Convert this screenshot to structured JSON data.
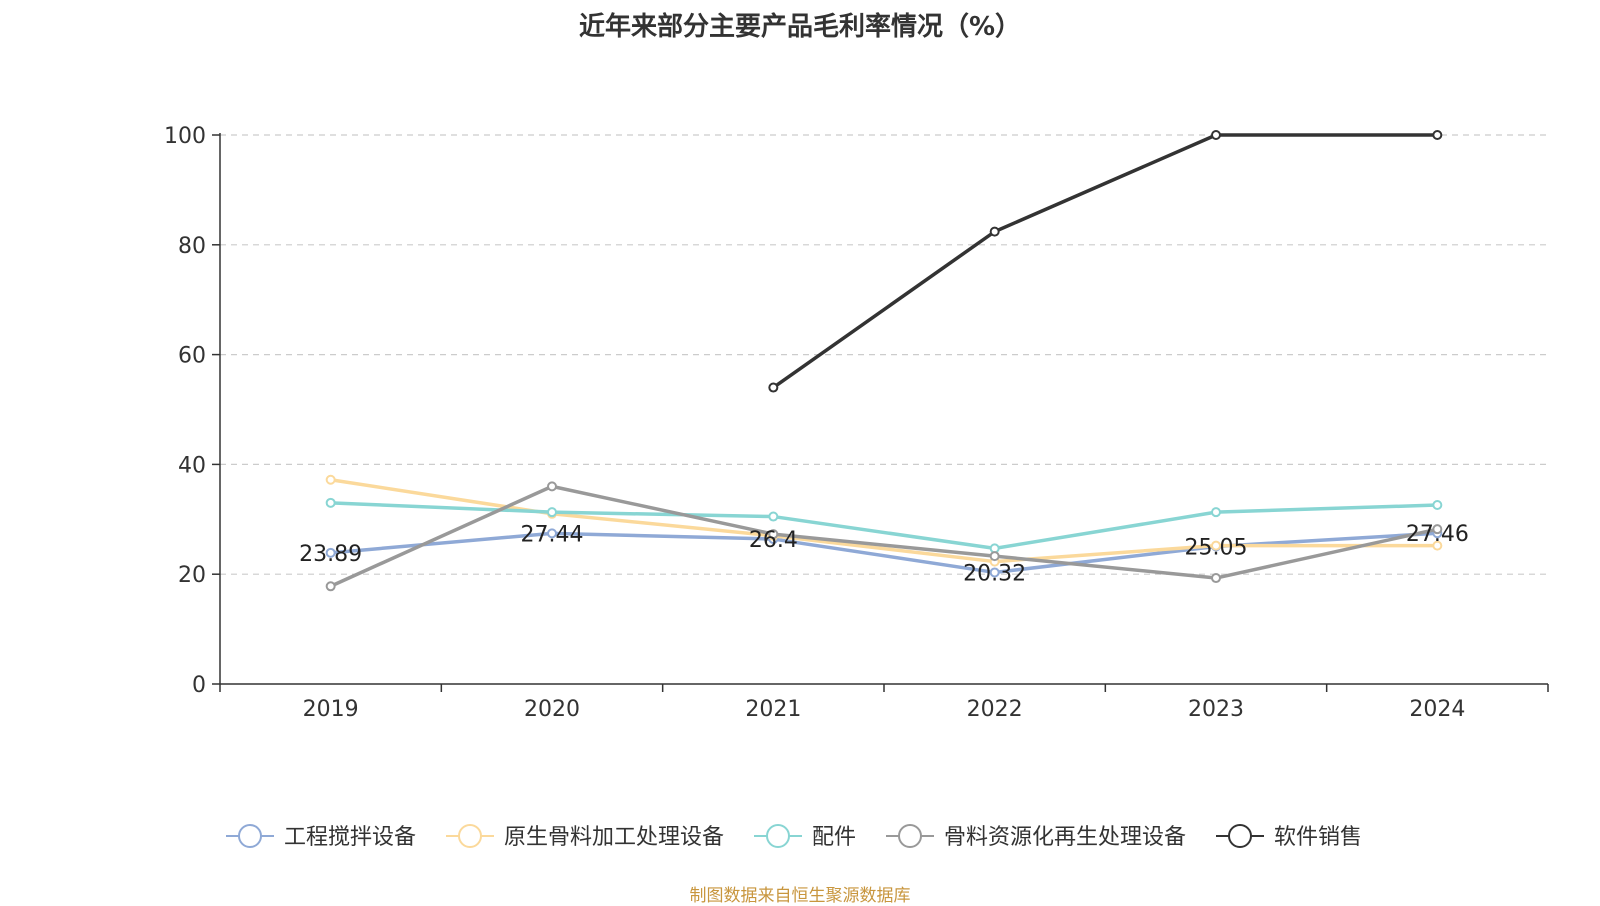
{
  "chart_data": {
    "type": "line",
    "title": "近年来部分主要产品毛利率情况（%）",
    "xlabel": "",
    "ylabel": "",
    "categories": [
      "2019",
      "2020",
      "2021",
      "2022",
      "2023",
      "2024"
    ],
    "ylim": [
      0,
      100
    ],
    "yticks": [
      "0",
      "20",
      "40",
      "60",
      "80",
      "100"
    ],
    "grid": true,
    "legend_position": "bottom",
    "series": [
      {
        "name": "工程搅拌设备",
        "color": "#8fa9d6",
        "values": [
          23.89,
          27.44,
          26.4,
          20.32,
          25.05,
          27.46
        ],
        "labels": [
          "23.89",
          "27.44",
          "26.4",
          "20.32",
          "25.05",
          "27.46"
        ]
      },
      {
        "name": "原生骨料加工处理设备",
        "color": "#fbd99b",
        "values": [
          37.2,
          31.0,
          27.0,
          22.3,
          25.2,
          25.2
        ]
      },
      {
        "name": "配件",
        "color": "#88d5d3",
        "values": [
          33.0,
          31.3,
          30.5,
          24.7,
          31.3,
          32.6
        ]
      },
      {
        "name": "骨料资源化再生处理设备",
        "color": "#999999",
        "values": [
          17.8,
          36.0,
          27.3,
          23.3,
          19.3,
          28.2
        ]
      },
      {
        "name": "软件销售",
        "color": "#333333",
        "values": [
          null,
          null,
          54.0,
          82.4,
          100,
          100
        ]
      }
    ]
  },
  "source_note": "制图数据来自恒生聚源数据库"
}
